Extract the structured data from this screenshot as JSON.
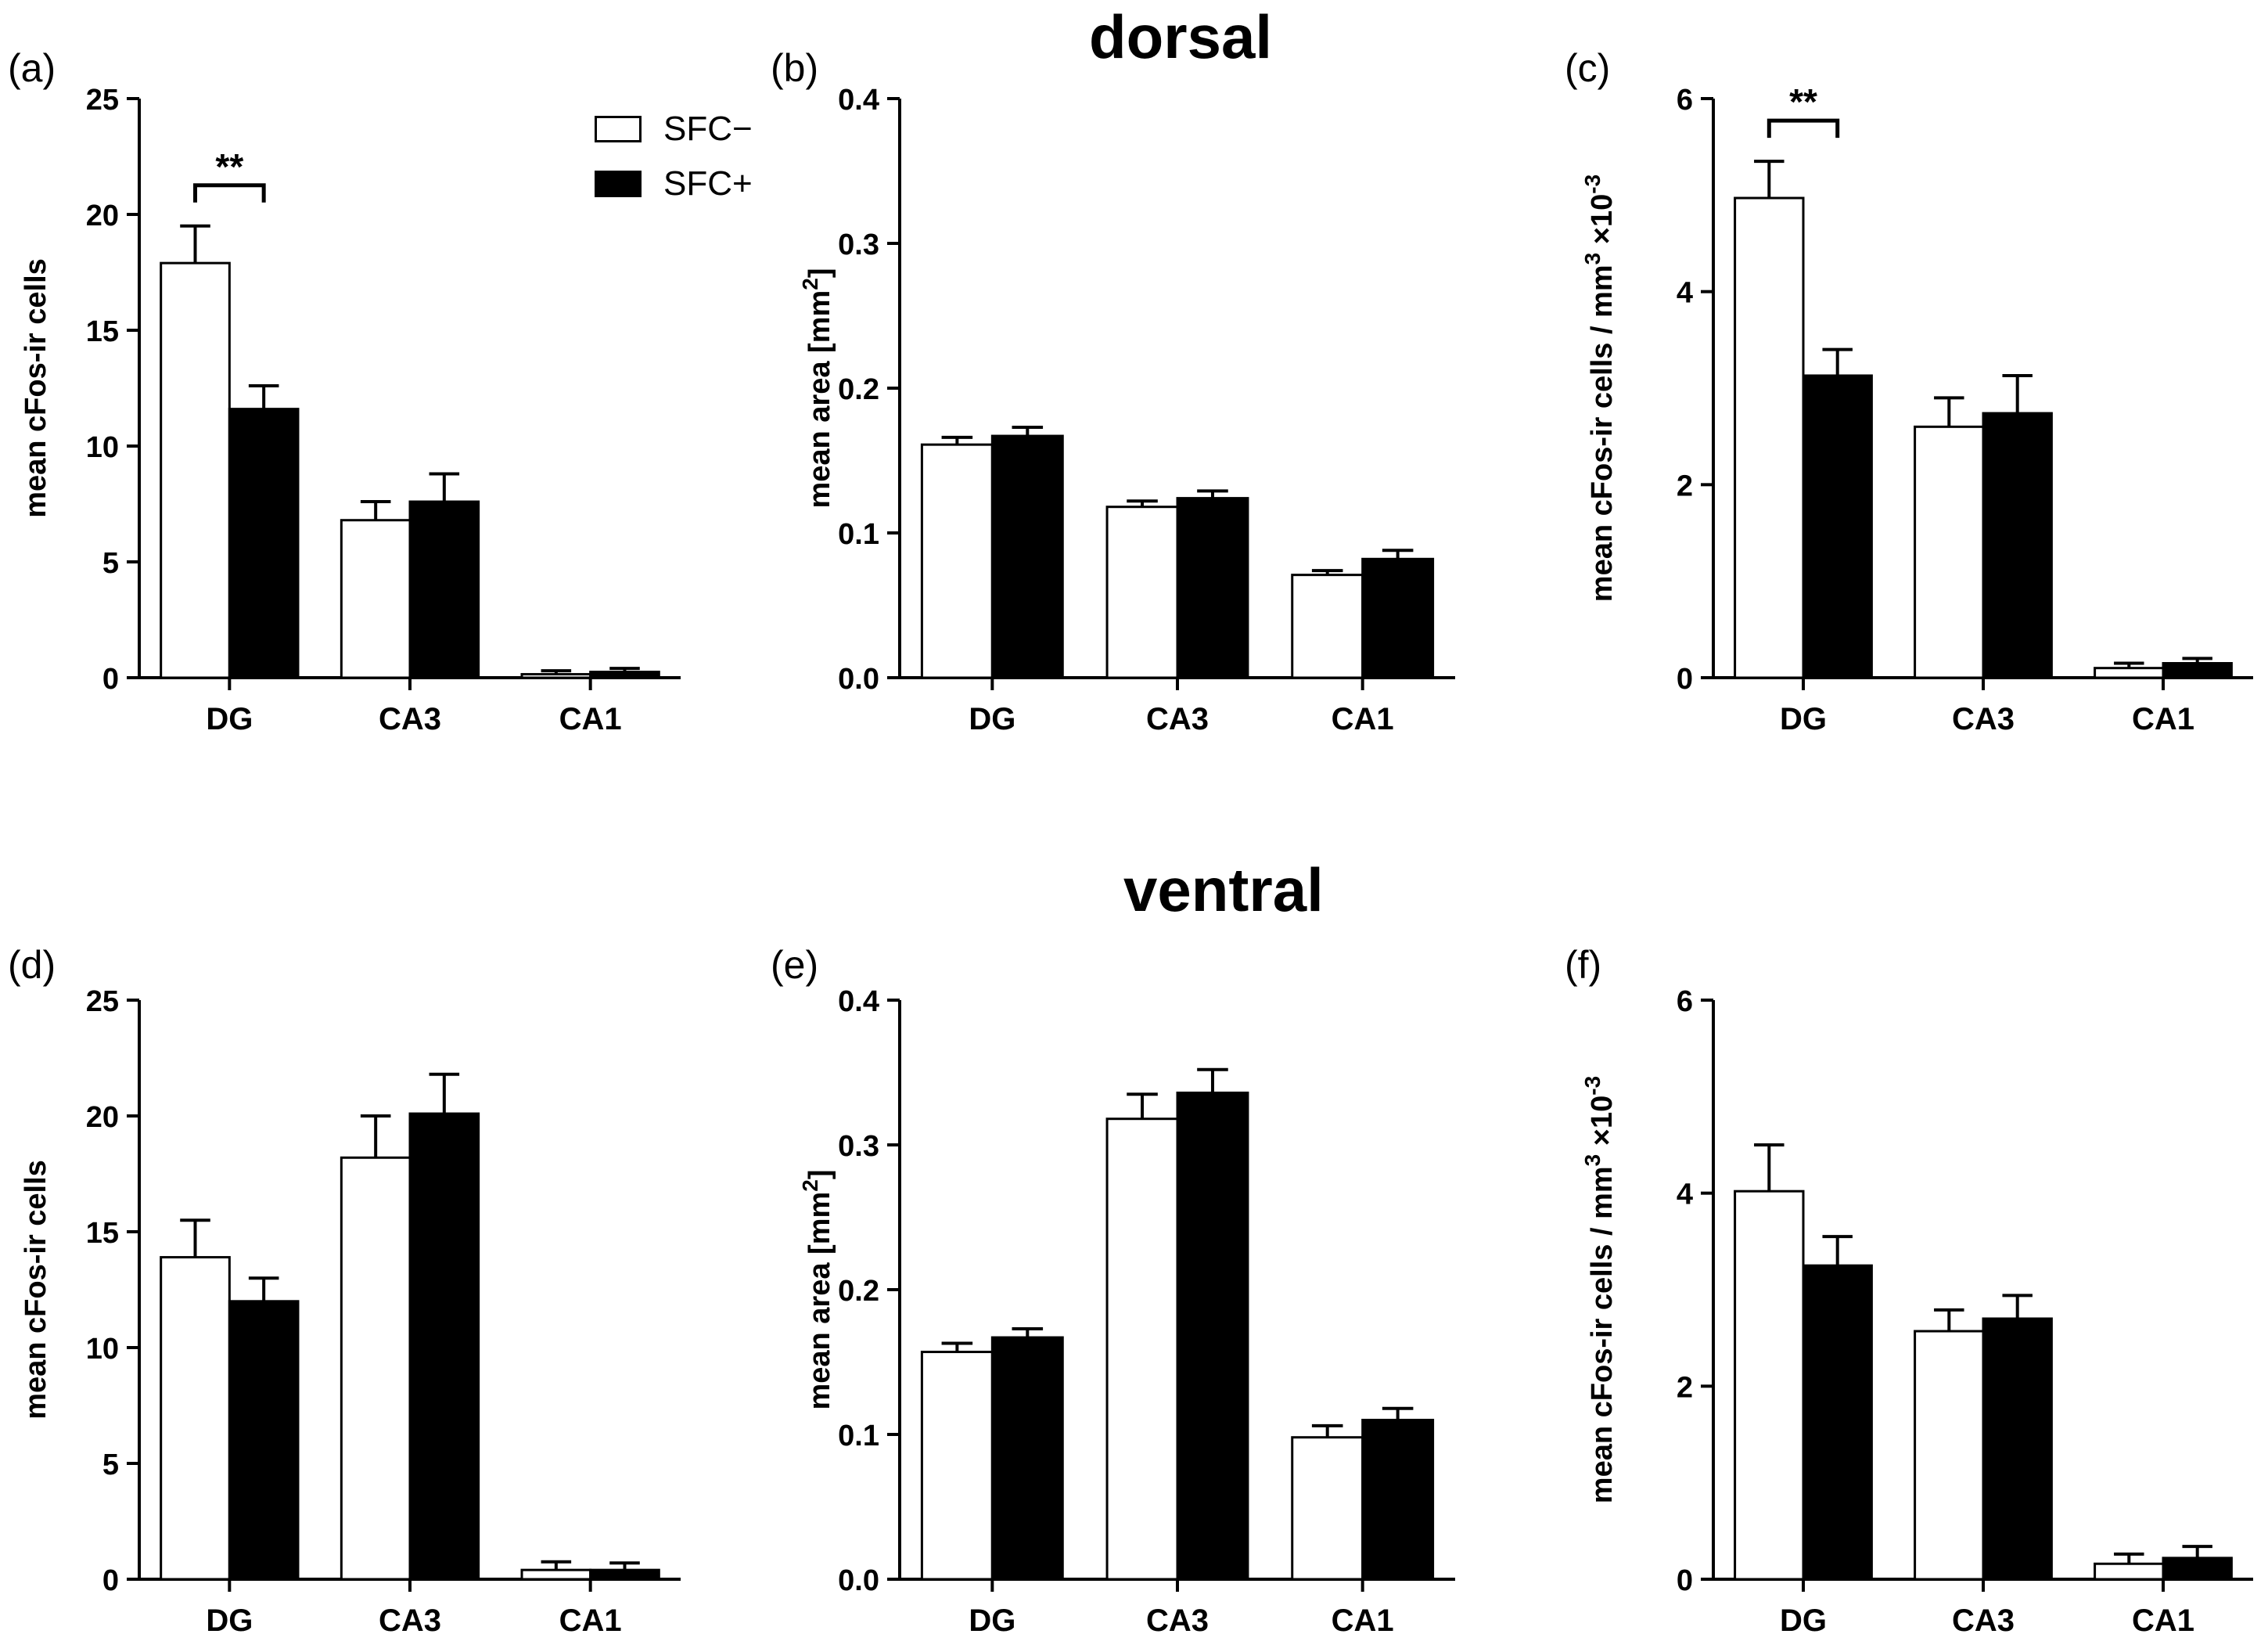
{
  "figure": {
    "dorsal_title": "dorsal",
    "ventral_title": "ventral",
    "legend": [
      {
        "label": "SFC−",
        "color": "#ffffff"
      },
      {
        "label": "SFC+",
        "color": "#000000"
      }
    ]
  },
  "chart_data": [
    {
      "panel": "(a)",
      "type": "bar",
      "region": "dorsal",
      "ylabel": "mean cFos-ir cells",
      "xlabel": "",
      "categories": [
        "DG",
        "CA3",
        "CA1"
      ],
      "ylim": [
        0,
        25
      ],
      "yticks": [
        "0",
        "5",
        "10",
        "15",
        "20",
        "25"
      ],
      "series": [
        {
          "name": "SFC−",
          "values": [
            17.9,
            6.8,
            0.15
          ],
          "errors": [
            1.6,
            0.8,
            0.15
          ]
        },
        {
          "name": "SFC+",
          "values": [
            11.6,
            7.6,
            0.25
          ],
          "errors": [
            1.0,
            1.2,
            0.15
          ]
        }
      ],
      "annotation": {
        "text": "**",
        "category": "DG"
      }
    },
    {
      "panel": "(b)",
      "type": "bar",
      "region": "dorsal",
      "ylabel": "mean area [mm²]",
      "xlabel": "",
      "categories": [
        "DG",
        "CA3",
        "CA1"
      ],
      "ylim": [
        0,
        0.4
      ],
      "yticks": [
        "0.0",
        "0.1",
        "0.2",
        "0.3",
        "0.4"
      ],
      "series": [
        {
          "name": "SFC−",
          "values": [
            0.161,
            0.118,
            0.071
          ],
          "errors": [
            0.005,
            0.004,
            0.003
          ]
        },
        {
          "name": "SFC+",
          "values": [
            0.167,
            0.124,
            0.082
          ],
          "errors": [
            0.006,
            0.005,
            0.006
          ]
        }
      ]
    },
    {
      "panel": "(c)",
      "type": "bar",
      "region": "dorsal",
      "ylabel": "mean cFos-ir cells / mm³ ×10⁻³",
      "xlabel": "",
      "categories": [
        "DG",
        "CA3",
        "CA1"
      ],
      "ylim": [
        0,
        6
      ],
      "yticks": [
        "0",
        "2",
        "4",
        "6"
      ],
      "series": [
        {
          "name": "SFC−",
          "values": [
            4.97,
            2.6,
            0.1
          ],
          "errors": [
            0.38,
            0.3,
            0.05
          ]
        },
        {
          "name": "SFC+",
          "values": [
            3.13,
            2.74,
            0.15
          ],
          "errors": [
            0.27,
            0.39,
            0.05
          ]
        }
      ],
      "annotation": {
        "text": "**",
        "category": "DG"
      }
    },
    {
      "panel": "(d)",
      "type": "bar",
      "region": "ventral",
      "ylabel": "mean cFos-ir cells",
      "xlabel": "",
      "categories": [
        "DG",
        "CA3",
        "CA1"
      ],
      "ylim": [
        0,
        25
      ],
      "yticks": [
        "0",
        "5",
        "10",
        "15",
        "20",
        "25"
      ],
      "series": [
        {
          "name": "SFC−",
          "values": [
            13.9,
            18.2,
            0.4
          ],
          "errors": [
            1.6,
            1.8,
            0.35
          ]
        },
        {
          "name": "SFC+",
          "values": [
            12.0,
            20.1,
            0.4
          ],
          "errors": [
            1.0,
            1.7,
            0.3
          ]
        }
      ]
    },
    {
      "panel": "(e)",
      "type": "bar",
      "region": "ventral",
      "ylabel": "mean area [mm²]",
      "xlabel": "",
      "categories": [
        "DG",
        "CA3",
        "CA1"
      ],
      "ylim": [
        0,
        0.4
      ],
      "yticks": [
        "0.0",
        "0.1",
        "0.2",
        "0.3",
        "0.4"
      ],
      "series": [
        {
          "name": "SFC−",
          "values": [
            0.157,
            0.318,
            0.098
          ],
          "errors": [
            0.006,
            0.017,
            0.008
          ]
        },
        {
          "name": "SFC+",
          "values": [
            0.167,
            0.336,
            0.11
          ],
          "errors": [
            0.006,
            0.016,
            0.008
          ]
        }
      ]
    },
    {
      "panel": "(f)",
      "type": "bar",
      "region": "ventral",
      "ylabel": "mean cFos-ir cells / mm³ ×10⁻³",
      "xlabel": "",
      "categories": [
        "DG",
        "CA3",
        "CA1"
      ],
      "ylim": [
        0,
        6
      ],
      "yticks": [
        "0",
        "2",
        "4",
        "6"
      ],
      "series": [
        {
          "name": "SFC−",
          "values": [
            4.02,
            2.57,
            0.16
          ],
          "errors": [
            0.48,
            0.22,
            0.1
          ]
        },
        {
          "name": "SFC+",
          "values": [
            3.25,
            2.7,
            0.22
          ],
          "errors": [
            0.3,
            0.24,
            0.12
          ]
        }
      ]
    }
  ]
}
